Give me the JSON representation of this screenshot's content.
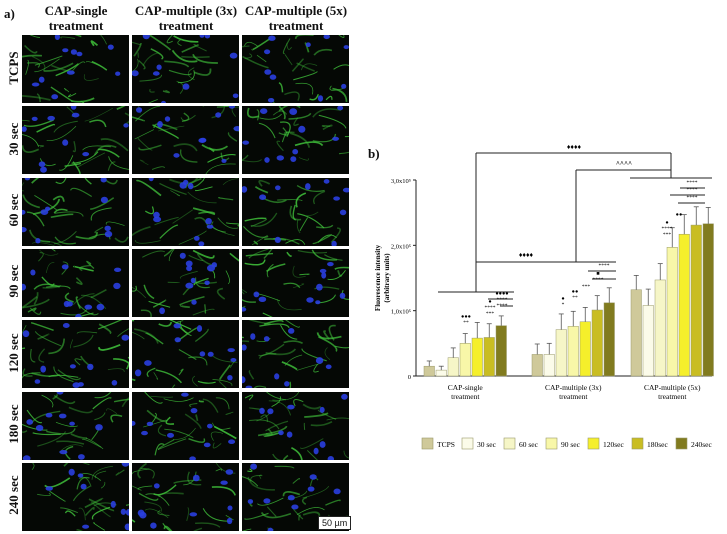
{
  "panel_a": {
    "label": "a)",
    "columns": [
      "CAP-single treatment",
      "CAP-multiple (3x) treatment",
      "CAP-multiple (5x) treatment"
    ],
    "column_lines": [
      [
        "CAP-single",
        "treatment"
      ],
      [
        "CAP-multiple (3x)",
        "treatment"
      ],
      [
        "CAP-multiple (5x)",
        "treatment"
      ]
    ],
    "rows": [
      "TCPS",
      "30 sec",
      "60 sec",
      "90 sec",
      "120 sec",
      "180 sec",
      "240 sec"
    ],
    "scale_bar": "50 µm",
    "colors": {
      "actin": "#3fbf3a",
      "nuclei": "#2a3fe0",
      "background": "#050805"
    }
  },
  "panel_b": {
    "label": "b)"
  },
  "chart_data": {
    "type": "bar",
    "ylabel_lines": [
      "Fluorescence intensity",
      "(arbitrary units)"
    ],
    "ytick_labels": [
      "0",
      "1,0x10⁵",
      "2,0x10⁵",
      "3,0x10⁵"
    ],
    "ylim": [
      0,
      300000
    ],
    "groups": [
      {
        "label_lines": [
          "CAP-single",
          "treatment"
        ]
      },
      {
        "label_lines": [
          "CAP-multiple (3x)",
          "treatment"
        ]
      },
      {
        "label_lines": [
          "CAP-multiple (5x)",
          "treatment"
        ]
      }
    ],
    "series": [
      {
        "name": "TCPS",
        "color": "#cfc99a",
        "values": [
          15000,
          33000,
          132000
        ],
        "errors": [
          8000,
          16000,
          22000
        ]
      },
      {
        "name": "30 sec",
        "color": "#fbfbe9",
        "values": [
          9000,
          33000,
          108000
        ],
        "errors": [
          6000,
          17000,
          25000
        ]
      },
      {
        "name": "60 sec",
        "color": "#f6f6c7",
        "values": [
          28000,
          71000,
          147000
        ],
        "errors": [
          15000,
          24000,
          25000
        ]
      },
      {
        "name": "90 sec",
        "color": "#f8f7a8",
        "values": [
          50000,
          76000,
          197000
        ],
        "errors": [
          15000,
          23000,
          30000
        ]
      },
      {
        "name": "120sec",
        "color": "#f5ef2b",
        "values": [
          58000,
          83000,
          217000
        ],
        "errors": [
          24000,
          22000,
          30000
        ]
      },
      {
        "name": "180sec",
        "color": "#c9bd22",
        "values": [
          59000,
          101000,
          231000
        ],
        "errors": [
          21000,
          22000,
          28000
        ]
      },
      {
        "name": "240sec",
        "color": "#817b1f",
        "values": [
          77000,
          112000,
          233000
        ],
        "errors": [
          15000,
          23000,
          25000
        ]
      }
    ],
    "significance_symbols": {
      "top": "♦♦♦♦",
      "upper": "^^^^",
      "middle": "♦♦♦♦",
      "g1": [
        "●●●",
        "**",
        "●",
        "****",
        "***",
        "●●●●",
        "****",
        "****"
      ],
      "g2": [
        "●",
        "*",
        "●●",
        "**",
        "***",
        "■",
        "****",
        "****"
      ],
      "g3": [
        "●",
        "●●",
        "****",
        "***",
        "****",
        "****",
        "****"
      ]
    },
    "legend_placement": "bottom",
    "grid": false
  }
}
